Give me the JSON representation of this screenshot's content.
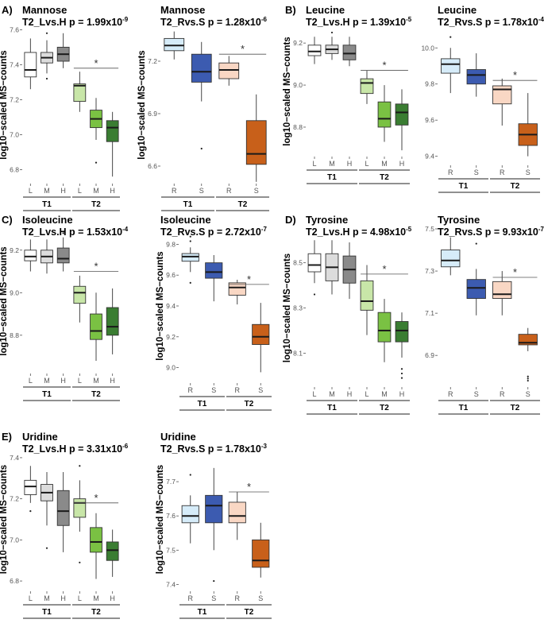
{
  "chart_data": [
    {
      "id": "mannose_lh",
      "panel_label": "A)",
      "metabolite": "Mannose",
      "title_prefix": "T2_Lvs.H p = ",
      "p_mant": "1.99x10",
      "p_exp": "-9",
      "type": "box",
      "ylabel": "log10−scaled MS−counts",
      "ylim": [
        6.72,
        7.62
      ],
      "yticks": [
        {
          "v": 6.8,
          "l": "6.8"
        },
        {
          "v": 7.0,
          "l": "7.0"
        },
        {
          "v": 7.2,
          "l": "7.2"
        },
        {
          "v": 7.4,
          "l": "7.4"
        },
        {
          "v": 7.6,
          "l": "7.6"
        }
      ],
      "groups": [
        {
          "label": "T1",
          "from": 0,
          "to": 2
        },
        {
          "label": "T2",
          "from": 3,
          "to": 5
        }
      ],
      "sig": {
        "from": 3,
        "to": 5,
        "y": 7.38,
        "label": "*"
      },
      "boxes": [
        {
          "cat": "L",
          "fill": "#ffffff",
          "q1": 7.33,
          "med": 7.37,
          "q3": 7.47,
          "lo": 7.26,
          "hi": 7.55,
          "out": []
        },
        {
          "cat": "M",
          "fill": "#dcdcdc",
          "q1": 7.41,
          "med": 7.44,
          "q3": 7.47,
          "lo": 7.35,
          "hi": 7.54,
          "out": [
            7.32,
            7.58
          ]
        },
        {
          "cat": "H",
          "fill": "#8a8a8a",
          "q1": 7.42,
          "med": 7.46,
          "q3": 7.5,
          "lo": 7.38,
          "hi": 7.58,
          "out": []
        },
        {
          "cat": "L",
          "fill": "#c8e6a8",
          "q1": 7.19,
          "med": 7.28,
          "q3": 7.29,
          "lo": 7.13,
          "hi": 7.36,
          "out": []
        },
        {
          "cat": "M",
          "fill": "#7ac143",
          "q1": 7.04,
          "med": 7.09,
          "q3": 7.14,
          "lo": 6.97,
          "hi": 7.21,
          "out": [
            6.84
          ]
        },
        {
          "cat": "H",
          "fill": "#3a7d32",
          "q1": 6.96,
          "med": 7.04,
          "q3": 7.08,
          "lo": 6.76,
          "hi": 7.13,
          "out": []
        }
      ]
    },
    {
      "id": "mannose_rs",
      "panel_label": "",
      "metabolite": "Mannose",
      "title_prefix": "T2_Rvs.S p = ",
      "p_mant": "1.28x10",
      "p_exp": "-6",
      "type": "box",
      "ylabel": "log10−scaled MS−counts",
      "ylim": [
        6.5,
        7.4
      ],
      "yticks": [
        {
          "v": 6.6,
          "l": "6.6"
        },
        {
          "v": 6.9,
          "l": "6.9"
        },
        {
          "v": 7.2,
          "l": "7.2"
        }
      ],
      "groups": [
        {
          "label": "T1",
          "from": 0,
          "to": 1
        },
        {
          "label": "T2",
          "from": 2,
          "to": 3
        }
      ],
      "sig": {
        "from": 2,
        "to": 3,
        "y": 7.24,
        "label": "*"
      },
      "boxes": [
        {
          "cat": "R",
          "fill": "#d6ecf9",
          "q1": 7.26,
          "med": 7.29,
          "q3": 7.33,
          "lo": 7.21,
          "hi": 7.37,
          "out": []
        },
        {
          "cat": "S",
          "fill": "#3c5bb0",
          "q1": 7.08,
          "med": 7.14,
          "q3": 7.24,
          "lo": 6.97,
          "hi": 7.31,
          "out": [
            6.7
          ]
        },
        {
          "cat": "R",
          "fill": "#f9d7c4",
          "q1": 7.1,
          "med": 7.15,
          "q3": 7.19,
          "lo": 7.06,
          "hi": 7.23,
          "out": []
        },
        {
          "cat": "S",
          "fill": "#c8601a",
          "q1": 6.61,
          "med": 6.67,
          "q3": 6.86,
          "lo": 6.51,
          "hi": 7.01,
          "out": []
        }
      ]
    },
    {
      "id": "leucine_lh",
      "panel_label": "B)",
      "metabolite": "Leucine",
      "title_prefix": "T2_Lvs.H p = ",
      "p_mant": "1.39x10",
      "p_exp": "-5",
      "type": "box",
      "ylabel": "log10−scaled MS−counts",
      "ylim": [
        8.66,
        9.28
      ],
      "yticks": [
        {
          "v": 8.8,
          "l": "8.8"
        },
        {
          "v": 9.0,
          "l": "9.0"
        },
        {
          "v": 9.2,
          "l": "9.2"
        }
      ],
      "groups": [
        {
          "label": "T1",
          "from": 0,
          "to": 2
        },
        {
          "label": "T2",
          "from": 3,
          "to": 5
        }
      ],
      "sig": {
        "from": 3,
        "to": 5,
        "y": 9.07,
        "label": "*"
      },
      "boxes": [
        {
          "cat": "L",
          "fill": "#ffffff",
          "q1": 9.14,
          "med": 9.16,
          "q3": 9.19,
          "lo": 9.1,
          "hi": 9.23,
          "out": []
        },
        {
          "cat": "M",
          "fill": "#dcdcdc",
          "q1": 9.15,
          "med": 9.17,
          "q3": 9.19,
          "lo": 9.12,
          "hi": 9.23,
          "out": [
            9.25
          ]
        },
        {
          "cat": "H",
          "fill": "#8a8a8a",
          "q1": 9.12,
          "med": 9.15,
          "q3": 9.19,
          "lo": 9.09,
          "hi": 9.23,
          "out": []
        },
        {
          "cat": "L",
          "fill": "#c8e6a8",
          "q1": 8.96,
          "med": 9.01,
          "q3": 9.03,
          "lo": 8.91,
          "hi": 9.07,
          "out": []
        },
        {
          "cat": "M",
          "fill": "#7ac143",
          "q1": 8.8,
          "med": 8.84,
          "q3": 8.92,
          "lo": 8.73,
          "hi": 9.0,
          "out": []
        },
        {
          "cat": "H",
          "fill": "#3a7d32",
          "q1": 8.81,
          "med": 8.87,
          "q3": 8.91,
          "lo": 8.69,
          "hi": 8.98,
          "out": []
        }
      ]
    },
    {
      "id": "leucine_rs",
      "panel_label": "",
      "metabolite": "Leucine",
      "title_prefix": "T2_Rvs.S p = ",
      "p_mant": "1.78x10",
      "p_exp": "-4",
      "type": "box",
      "ylabel": "",
      "ylim": [
        9.35,
        10.12
      ],
      "yticks": [
        {
          "v": 9.4,
          "l": "9.4"
        },
        {
          "v": 9.6,
          "l": "9.6"
        },
        {
          "v": 9.8,
          "l": "9.8"
        },
        {
          "v": 10.0,
          "l": "10.0"
        }
      ],
      "groups": [
        {
          "label": "T1",
          "from": 0,
          "to": 1
        },
        {
          "label": "T2",
          "from": 2,
          "to": 3
        }
      ],
      "sig": {
        "from": 2,
        "to": 3,
        "y": 9.82,
        "label": "*"
      },
      "boxes": [
        {
          "cat": "R",
          "fill": "#d6ecf9",
          "q1": 9.86,
          "med": 9.91,
          "q3": 9.94,
          "lo": 9.75,
          "hi": 10.0,
          "out": [
            10.06
          ]
        },
        {
          "cat": "S",
          "fill": "#3c5bb0",
          "q1": 9.8,
          "med": 9.85,
          "q3": 9.88,
          "lo": 9.73,
          "hi": 9.97,
          "out": []
        },
        {
          "cat": "R",
          "fill": "#f9d7c4",
          "q1": 9.69,
          "med": 9.77,
          "q3": 9.79,
          "lo": 9.57,
          "hi": 9.83,
          "out": []
        },
        {
          "cat": "S",
          "fill": "#c8601a",
          "q1": 9.46,
          "med": 9.52,
          "q3": 9.58,
          "lo": 9.4,
          "hi": 9.75,
          "out": []
        }
      ]
    },
    {
      "id": "isoleucine_lh",
      "panel_label": "C)",
      "metabolite": "Isoleucine",
      "title_prefix": "T2_Lvs.H p = ",
      "p_mant": "1.53x10",
      "p_exp": "-4",
      "type": "box",
      "ylabel": "log10−scaled MS−counts",
      "ylim": [
        8.62,
        9.3
      ],
      "yticks": [
        {
          "v": 8.8,
          "l": "8.8"
        },
        {
          "v": 9.0,
          "l": "9.0"
        },
        {
          "v": 9.2,
          "l": "9.2"
        }
      ],
      "groups": [
        {
          "label": "T1",
          "from": 0,
          "to": 2
        },
        {
          "label": "T2",
          "from": 3,
          "to": 5
        }
      ],
      "sig": {
        "from": 3,
        "to": 5,
        "y": 9.1,
        "label": "*"
      },
      "boxes": [
        {
          "cat": "L",
          "fill": "#ffffff",
          "q1": 9.15,
          "med": 9.17,
          "q3": 9.2,
          "lo": 9.1,
          "hi": 9.25,
          "out": []
        },
        {
          "cat": "M",
          "fill": "#dcdcdc",
          "q1": 9.14,
          "med": 9.17,
          "q3": 9.2,
          "lo": 9.09,
          "hi": 9.25,
          "out": []
        },
        {
          "cat": "H",
          "fill": "#8a8a8a",
          "q1": 9.14,
          "med": 9.16,
          "q3": 9.21,
          "lo": 9.1,
          "hi": 9.26,
          "out": [
            9.28
          ]
        },
        {
          "cat": "L",
          "fill": "#c8e6a8",
          "q1": 8.95,
          "med": 9.0,
          "q3": 9.03,
          "lo": 8.86,
          "hi": 9.08,
          "out": []
        },
        {
          "cat": "M",
          "fill": "#7ac143",
          "q1": 8.78,
          "med": 8.82,
          "q3": 8.9,
          "lo": 8.68,
          "hi": 9.0,
          "out": []
        },
        {
          "cat": "H",
          "fill": "#3a7d32",
          "q1": 8.8,
          "med": 8.84,
          "q3": 8.93,
          "lo": 8.71,
          "hi": 9.02,
          "out": []
        }
      ]
    },
    {
      "id": "isoleucine_rs",
      "panel_label": "",
      "metabolite": "Isoleucine",
      "title_prefix": "T2_Rvs.S p = ",
      "p_mant": "2.72x10",
      "p_exp": "-7",
      "type": "box",
      "ylabel": "log10−scaled MS−counts",
      "ylim": [
        8.9,
        9.9
      ],
      "yticks": [
        {
          "v": 9.0,
          "l": "9.0"
        },
        {
          "v": 9.2,
          "l": "9.2"
        },
        {
          "v": 9.4,
          "l": "9.4"
        },
        {
          "v": 9.6,
          "l": "9.6"
        },
        {
          "v": 9.8,
          "l": "9.8"
        }
      ],
      "groups": [
        {
          "label": "T1",
          "from": 0,
          "to": 1
        },
        {
          "label": "T2",
          "from": 2,
          "to": 3
        }
      ],
      "sig": {
        "from": 2,
        "to": 3,
        "y": 9.54,
        "label": "*"
      },
      "boxes": [
        {
          "cat": "R",
          "fill": "#d6ecf9",
          "q1": 9.69,
          "med": 9.72,
          "q3": 9.74,
          "lo": 9.62,
          "hi": 9.78,
          "out": [
            9.55,
            9.82,
            9.85
          ]
        },
        {
          "cat": "S",
          "fill": "#3c5bb0",
          "q1": 9.58,
          "med": 9.62,
          "q3": 9.68,
          "lo": 9.43,
          "hi": 9.73,
          "out": []
        },
        {
          "cat": "R",
          "fill": "#f9d7c4",
          "q1": 9.47,
          "med": 9.52,
          "q3": 9.55,
          "lo": 9.41,
          "hi": 9.57,
          "out": []
        },
        {
          "cat": "S",
          "fill": "#c8601a",
          "q1": 9.15,
          "med": 9.2,
          "q3": 9.28,
          "lo": 8.97,
          "hi": 9.42,
          "out": []
        }
      ]
    },
    {
      "id": "tyrosine_lh",
      "panel_label": "D)",
      "metabolite": "Tyrosine",
      "title_prefix": "T2_Lvs.H p = ",
      "p_mant": "4.98x10",
      "p_exp": "-5",
      "type": "box",
      "ylabel": "log10−scaled MS−counts",
      "ylim": [
        7.95,
        8.65
      ],
      "yticks": [
        {
          "v": 8.1,
          "l": "8.1"
        },
        {
          "v": 8.3,
          "l": "8.3"
        },
        {
          "v": 8.5,
          "l": "8.5"
        }
      ],
      "groups": [
        {
          "label": "T1",
          "from": 0,
          "to": 2
        },
        {
          "label": "T2",
          "from": 3,
          "to": 5
        }
      ],
      "sig": {
        "from": 3,
        "to": 5,
        "y": 8.45,
        "label": "*"
      },
      "boxes": [
        {
          "cat": "L",
          "fill": "#ffffff",
          "q1": 8.46,
          "med": 8.49,
          "q3": 8.54,
          "lo": 8.41,
          "hi": 8.6,
          "out": [
            8.36
          ]
        },
        {
          "cat": "M",
          "fill": "#dcdcdc",
          "q1": 8.42,
          "med": 8.48,
          "q3": 8.54,
          "lo": 8.36,
          "hi": 8.6,
          "out": []
        },
        {
          "cat": "H",
          "fill": "#8a8a8a",
          "q1": 8.41,
          "med": 8.47,
          "q3": 8.53,
          "lo": 8.34,
          "hi": 8.59,
          "out": []
        },
        {
          "cat": "L",
          "fill": "#c8e6a8",
          "q1": 8.29,
          "med": 8.33,
          "q3": 8.42,
          "lo": 8.18,
          "hi": 8.49,
          "out": []
        },
        {
          "cat": "M",
          "fill": "#7ac143",
          "q1": 8.15,
          "med": 8.2,
          "q3": 8.28,
          "lo": 8.06,
          "hi": 8.34,
          "out": []
        },
        {
          "cat": "H",
          "fill": "#3a7d32",
          "q1": 8.15,
          "med": 8.2,
          "q3": 8.24,
          "lo": 8.08,
          "hi": 8.28,
          "out": [
            8.03,
            8.01,
            7.99
          ]
        }
      ]
    },
    {
      "id": "tyrosine_rs",
      "panel_label": "",
      "metabolite": "Tyrosine",
      "title_prefix": "T2_Rvs.S p = ",
      "p_mant": "9.93x10",
      "p_exp": "-7",
      "type": "box",
      "ylabel": "",
      "ylim": [
        6.75,
        7.5
      ],
      "yticks": [
        {
          "v": 6.9,
          "l": "6.9"
        },
        {
          "v": 7.1,
          "l": "7.1"
        },
        {
          "v": 7.3,
          "l": "7.3"
        },
        {
          "v": 7.5,
          "l": "7.5"
        }
      ],
      "groups": [
        {
          "label": "T1",
          "from": 0,
          "to": 1
        },
        {
          "label": "T2",
          "from": 2,
          "to": 3
        }
      ],
      "sig": {
        "from": 2,
        "to": 3,
        "y": 7.27,
        "label": "*"
      },
      "boxes": [
        {
          "cat": "R",
          "fill": "#d6ecf9",
          "q1": 7.32,
          "med": 7.35,
          "q3": 7.4,
          "lo": 7.28,
          "hi": 7.46,
          "out": []
        },
        {
          "cat": "S",
          "fill": "#3c5bb0",
          "q1": 7.17,
          "med": 7.22,
          "q3": 7.26,
          "lo": 7.09,
          "hi": 7.31,
          "out": [
            7.43
          ]
        },
        {
          "cat": "R",
          "fill": "#f9d7c4",
          "q1": 7.17,
          "med": 7.19,
          "q3": 7.25,
          "lo": 7.09,
          "hi": 7.3,
          "out": []
        },
        {
          "cat": "S",
          "fill": "#c8601a",
          "q1": 6.95,
          "med": 6.96,
          "q3": 7.0,
          "lo": 6.92,
          "hi": 7.03,
          "out": [
            6.8,
            6.79,
            6.78
          ]
        }
      ]
    },
    {
      "id": "uridine_lh",
      "panel_label": "E)",
      "metabolite": "Uridine",
      "title_prefix": "T2_Lvs.H p = ",
      "p_mant": "3.31x10",
      "p_exp": "-6",
      "type": "box",
      "ylabel": "log10−scaled MS−counts",
      "ylim": [
        6.75,
        7.45
      ],
      "yticks": [
        {
          "v": 6.8,
          "l": "6.8"
        },
        {
          "v": 7.0,
          "l": "7.0"
        },
        {
          "v": 7.2,
          "l": "7.2"
        },
        {
          "v": 7.4,
          "l": "7.4"
        }
      ],
      "groups": [
        {
          "label": "T1",
          "from": 0,
          "to": 2
        },
        {
          "label": "T2",
          "from": 3,
          "to": 5
        }
      ],
      "sig": {
        "from": 3,
        "to": 5,
        "y": 7.18,
        "label": "*"
      },
      "boxes": [
        {
          "cat": "L",
          "fill": "#ffffff",
          "q1": 7.22,
          "med": 7.26,
          "q3": 7.29,
          "lo": 7.18,
          "hi": 7.36,
          "out": [
            7.14
          ]
        },
        {
          "cat": "M",
          "fill": "#dcdcdc",
          "q1": 7.19,
          "med": 7.23,
          "q3": 7.27,
          "lo": 7.07,
          "hi": 7.33,
          "out": [
            6.96
          ]
        },
        {
          "cat": "H",
          "fill": "#8a8a8a",
          "q1": 7.07,
          "med": 7.14,
          "q3": 7.24,
          "lo": 6.94,
          "hi": 7.33,
          "out": []
        },
        {
          "cat": "L",
          "fill": "#c8e6a8",
          "q1": 7.11,
          "med": 7.18,
          "q3": 7.2,
          "lo": 7.04,
          "hi": 7.29,
          "out": [
            6.89,
            7.36
          ]
        },
        {
          "cat": "M",
          "fill": "#7ac143",
          "q1": 6.94,
          "med": 6.99,
          "q3": 7.06,
          "lo": 6.81,
          "hi": 7.13,
          "out": []
        },
        {
          "cat": "H",
          "fill": "#3a7d32",
          "q1": 6.9,
          "med": 6.95,
          "q3": 6.99,
          "lo": 6.82,
          "hi": 7.05,
          "out": []
        }
      ]
    },
    {
      "id": "uridine_rs",
      "panel_label": "",
      "metabolite": "Uridine",
      "title_prefix": "T2_Rvs.S p = ",
      "p_mant": "1.78x10",
      "p_exp": "-3",
      "type": "box",
      "ylabel": "log10−scaled MS−counts",
      "ylim": [
        7.38,
        7.8
      ],
      "yticks": [
        {
          "v": 7.4,
          "l": "7.4"
        },
        {
          "v": 7.5,
          "l": "7.5"
        },
        {
          "v": 7.6,
          "l": "7.6"
        },
        {
          "v": 7.7,
          "l": "7.7"
        }
      ],
      "groups": [
        {
          "label": "T1",
          "from": 0,
          "to": 1
        },
        {
          "label": "T2",
          "from": 2,
          "to": 3
        }
      ],
      "sig": {
        "from": 2,
        "to": 3,
        "y": 7.67,
        "label": "*"
      },
      "boxes": [
        {
          "cat": "R",
          "fill": "#d6ecf9",
          "q1": 7.58,
          "med": 7.6,
          "q3": 7.63,
          "lo": 7.52,
          "hi": 7.66,
          "out": [
            7.72
          ]
        },
        {
          "cat": "S",
          "fill": "#3c5bb0",
          "q1": 7.58,
          "med": 7.63,
          "q3": 7.66,
          "lo": 7.5,
          "hi": 7.74,
          "out": [
            7.41
          ]
        },
        {
          "cat": "R",
          "fill": "#f9d7c4",
          "q1": 7.58,
          "med": 7.6,
          "q3": 7.64,
          "lo": 7.53,
          "hi": 7.67,
          "out": []
        },
        {
          "cat": "S",
          "fill": "#c8601a",
          "q1": 7.45,
          "med": 7.47,
          "q3": 7.53,
          "lo": 7.42,
          "hi": 7.58,
          "out": []
        }
      ]
    }
  ]
}
